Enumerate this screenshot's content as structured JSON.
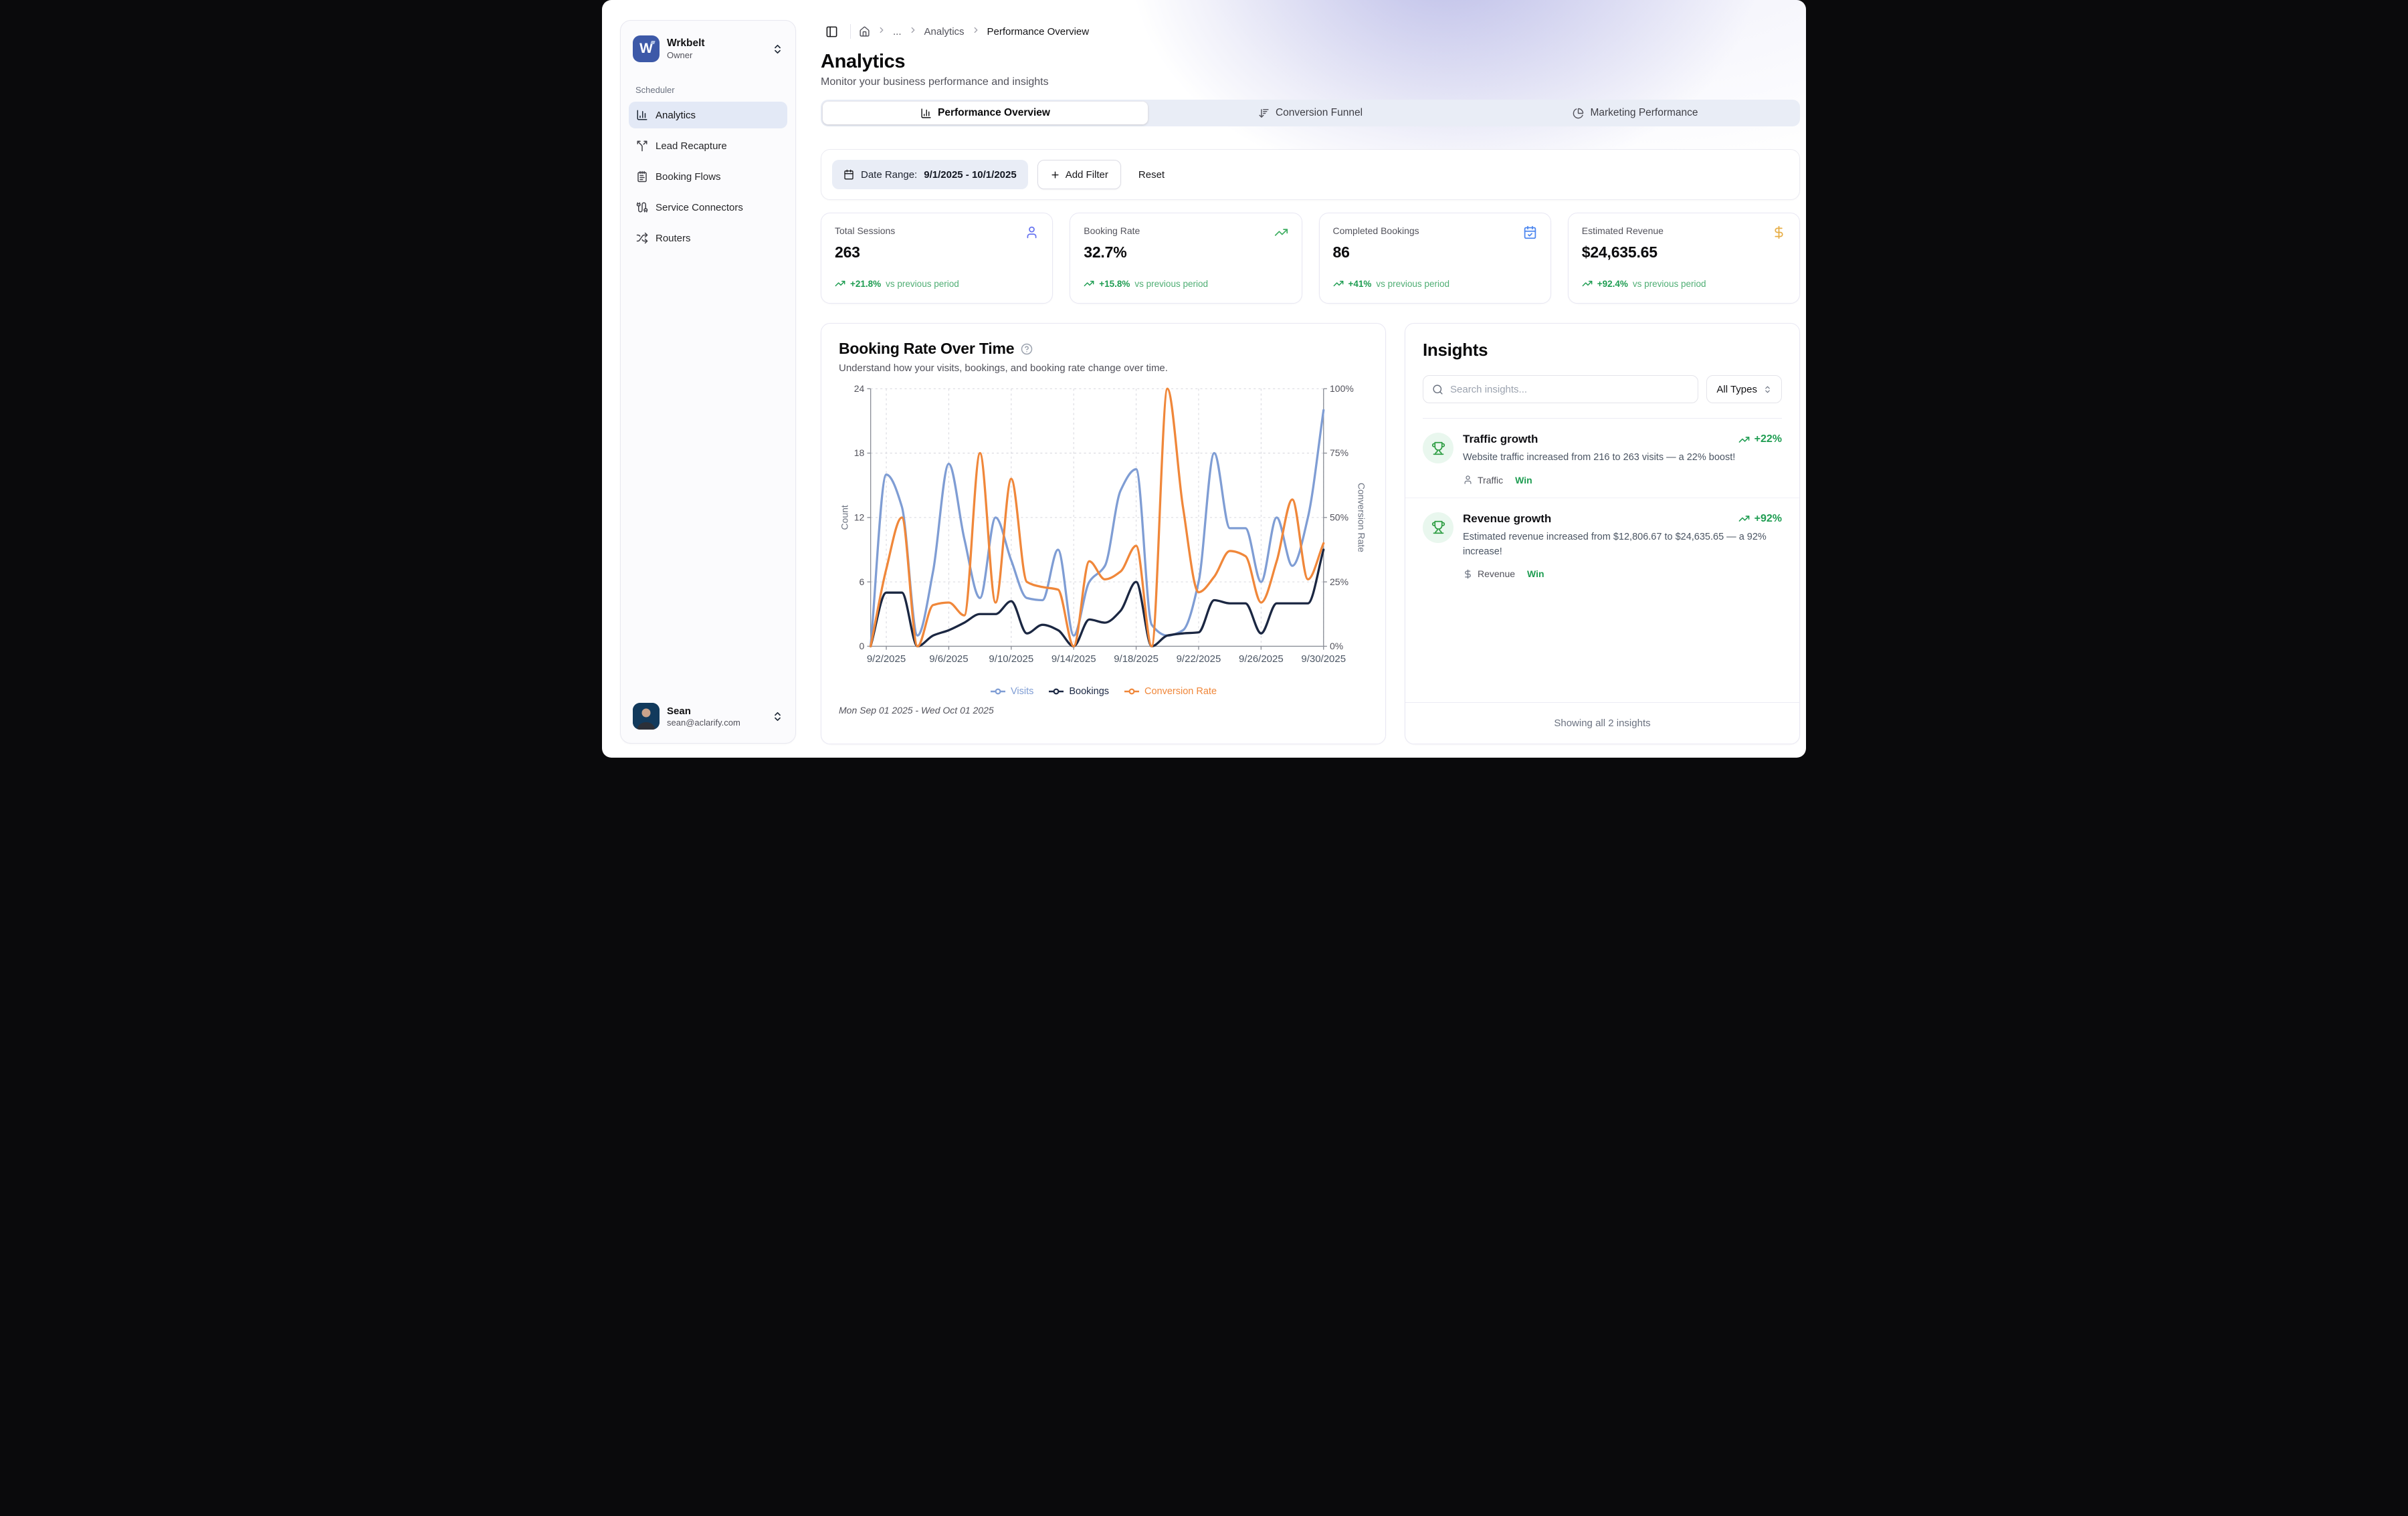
{
  "sidebar": {
    "workspace": {
      "name": "Wrkbelt",
      "role": "Owner",
      "logo_letter": "W"
    },
    "section_label": "Scheduler",
    "items": [
      {
        "label": "Analytics",
        "icon": "chart-column-icon",
        "active": true
      },
      {
        "label": "Lead Recapture",
        "icon": "split-icon",
        "active": false
      },
      {
        "label": "Booking Flows",
        "icon": "notepad-icon",
        "active": false
      },
      {
        "label": "Service Connectors",
        "icon": "cable-icon",
        "active": false
      },
      {
        "label": "Routers",
        "icon": "shuffle-icon",
        "active": false
      }
    ],
    "user": {
      "name": "Sean",
      "email": "sean@aclarify.com"
    }
  },
  "breadcrumb": {
    "ellipsis": "...",
    "parent": "Analytics",
    "current": "Performance Overview"
  },
  "header": {
    "title": "Analytics",
    "subtitle": "Monitor your business performance and insights"
  },
  "tabs": [
    {
      "label": "Performance Overview",
      "icon": "chart-column-icon",
      "active": true
    },
    {
      "label": "Conversion Funnel",
      "icon": "funnel-icon",
      "active": false
    },
    {
      "label": "Marketing Performance",
      "icon": "chart-pie-icon",
      "active": false
    }
  ],
  "filters": {
    "date_range_label": "Date Range:",
    "date_range_value": "9/1/2025 - 10/1/2025",
    "add_filter": "Add Filter",
    "reset": "Reset"
  },
  "kpis": [
    {
      "label": "Total Sessions",
      "value": "263",
      "delta": "+21.8%",
      "delta_note": "vs previous period",
      "icon": "user-icon",
      "icon_color": "#6774f0"
    },
    {
      "label": "Booking Rate",
      "value": "32.7%",
      "delta": "+15.8%",
      "delta_note": "vs previous period",
      "icon": "trending-up-icon",
      "icon_color": "#3fae62"
    },
    {
      "label": "Completed Bookings",
      "value": "86",
      "delta": "+41%",
      "delta_note": "vs previous period",
      "icon": "calendar-check-icon",
      "icon_color": "#4c86ef"
    },
    {
      "label": "Estimated Revenue",
      "value": "$24,635.65",
      "delta": "+92.4%",
      "delta_note": "vs previous period",
      "icon": "dollar-sign-icon",
      "icon_color": "#e7ae47"
    }
  ],
  "chart_card": {
    "title": "Booking Rate Over Time",
    "subtitle": "Understand how your visits, bookings, and booking rate change over time.",
    "footer_range": "Mon Sep 01 2025 - Wed Oct 01 2025"
  },
  "chart_data": {
    "type": "line",
    "title": "Booking Rate Over Time",
    "x": [
      "9/1/2025",
      "9/2/2025",
      "9/3/2025",
      "9/4/2025",
      "9/5/2025",
      "9/6/2025",
      "9/7/2025",
      "9/8/2025",
      "9/9/2025",
      "9/10/2025",
      "9/11/2025",
      "9/12/2025",
      "9/13/2025",
      "9/14/2025",
      "9/15/2025",
      "9/16/2025",
      "9/17/2025",
      "9/18/2025",
      "9/19/2025",
      "9/20/2025",
      "9/21/2025",
      "9/22/2025",
      "9/23/2025",
      "9/24/2025",
      "9/25/2025",
      "9/26/2025",
      "9/27/2025",
      "9/28/2025",
      "9/29/2025",
      "9/30/2025"
    ],
    "x_tick_indices": [
      1,
      5,
      9,
      13,
      17,
      21,
      25,
      29
    ],
    "left_axis": {
      "label": "Count",
      "ticks": [
        0,
        6,
        12,
        18,
        24
      ],
      "max": 24
    },
    "right_axis": {
      "label": "Conversion Rate",
      "ticks": [
        "0%",
        "25%",
        "50%",
        "75%",
        "100%"
      ],
      "max": 100
    },
    "grid": true,
    "legend_position": "bottom",
    "series": [
      {
        "name": "Visits",
        "axis": "left",
        "color": "#7f9dd4",
        "values": [
          0,
          16,
          13,
          1,
          7,
          17,
          10,
          4.5,
          12,
          8,
          4.5,
          4.3,
          9,
          1,
          6,
          7.5,
          14.5,
          16.5,
          2,
          1,
          1.5,
          6,
          18,
          11,
          11,
          6,
          12,
          7.5,
          12,
          22
        ]
      },
      {
        "name": "Bookings",
        "axis": "left",
        "color": "#1b2742",
        "values": [
          0,
          5,
          5,
          0,
          1,
          1.5,
          2.2,
          3,
          3,
          4.2,
          1.2,
          2,
          1.5,
          0,
          2.5,
          2.2,
          3.3,
          6,
          0,
          1,
          1.2,
          1.3,
          4.3,
          4,
          4,
          1.2,
          4,
          4,
          4,
          9
        ]
      },
      {
        "name": "Conversion Rate",
        "axis": "right",
        "color": "#f0873a",
        "values": [
          0,
          30,
          50,
          0,
          16,
          17,
          12,
          75,
          17,
          65,
          25,
          23,
          22,
          0,
          33,
          26,
          29,
          39,
          0,
          100,
          54,
          21,
          27,
          37,
          35,
          17,
          33,
          57,
          26,
          40
        ]
      }
    ]
  },
  "insights": {
    "title": "Insights",
    "search_placeholder": "Search insights...",
    "type_filter_value": "All Types",
    "items": [
      {
        "title": "Traffic growth",
        "delta": "+22%",
        "description": "Website traffic increased from 216 to 263 visits — a 22% boost!",
        "category": "Traffic",
        "badge": "Win"
      },
      {
        "title": "Revenue growth",
        "delta": "+92%",
        "description": "Estimated revenue increased from $12,806.67 to $24,635.65 — a 92% increase!",
        "category": "Revenue",
        "badge": "Win"
      }
    ],
    "footer": "Showing all 2 insights"
  }
}
